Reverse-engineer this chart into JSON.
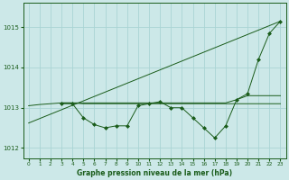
{
  "bg_color": "#cce8e8",
  "grid_color": "#aad4d4",
  "line_color": "#1a5c1a",
  "marker_color": "#1a5c1a",
  "xlabel": "Graphe pression niveau de la mer (hPa)",
  "xlim": [
    -0.5,
    23.5
  ],
  "ylim": [
    1011.75,
    1015.6
  ],
  "yticks": [
    1012,
    1013,
    1014,
    1015
  ],
  "xticks": [
    0,
    1,
    2,
    3,
    4,
    5,
    6,
    7,
    8,
    9,
    10,
    11,
    12,
    13,
    14,
    15,
    16,
    17,
    18,
    19,
    20,
    21,
    22,
    23
  ],
  "series1_straight": {
    "x": [
      0,
      23
    ],
    "y": [
      1012.62,
      1015.15
    ]
  },
  "series2_volatile": {
    "x": [
      3,
      4,
      5,
      6,
      7,
      8,
      9,
      10,
      11,
      12,
      13,
      14,
      15,
      16,
      17,
      18,
      19,
      20,
      21,
      22,
      23
    ],
    "y": [
      1013.1,
      1013.1,
      1012.75,
      1012.58,
      1012.5,
      1012.55,
      1012.55,
      1013.05,
      1013.1,
      1013.15,
      1013.0,
      1013.0,
      1012.75,
      1012.5,
      1012.25,
      1012.55,
      1013.2,
      1013.35,
      1014.2,
      1014.85,
      1015.15
    ]
  },
  "series3_flat": {
    "x": [
      0,
      1,
      2,
      3,
      4,
      5,
      6,
      7,
      8,
      9,
      10,
      11,
      12,
      13,
      14,
      15,
      16,
      17,
      18,
      19,
      20,
      21,
      22,
      23
    ],
    "y": [
      1013.05,
      1013.08,
      1013.1,
      1013.12,
      1013.12,
      1013.12,
      1013.12,
      1013.12,
      1013.12,
      1013.12,
      1013.12,
      1013.12,
      1013.12,
      1013.12,
      1013.12,
      1013.12,
      1013.12,
      1013.12,
      1013.12,
      1013.2,
      1013.3,
      1013.3,
      1013.3,
      1013.3
    ]
  },
  "series4_flat2": {
    "x": [
      3,
      4,
      5,
      6,
      7,
      8,
      9,
      10,
      11,
      12,
      13,
      14,
      15,
      16,
      17,
      18,
      19,
      20,
      21,
      22,
      23
    ],
    "y": [
      1013.12,
      1013.12,
      1013.1,
      1013.1,
      1013.1,
      1013.1,
      1013.1,
      1013.1,
      1013.1,
      1013.1,
      1013.1,
      1013.1,
      1013.1,
      1013.1,
      1013.1,
      1013.1,
      1013.1,
      1013.1,
      1013.1,
      1013.1,
      1013.1
    ]
  }
}
